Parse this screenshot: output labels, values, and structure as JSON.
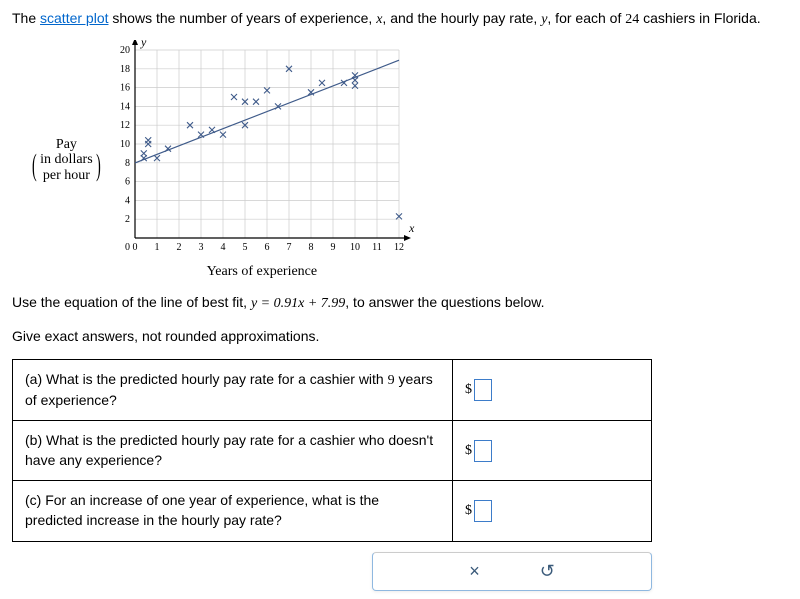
{
  "intro": {
    "pre": "The ",
    "link": "scatter plot",
    "mid": " shows the number of years of experience, ",
    "xvar": "x",
    "mid2": ", and the hourly pay rate, ",
    "yvar": "y",
    "mid3": ", for each of ",
    "n": "24",
    "post": " cashiers in Florida."
  },
  "chart": {
    "ylabel_line1": "Pay",
    "ylabel_line2a": "in dollars",
    "ylabel_line2b": "per hour",
    "xlabel": "Years of experience",
    "xaxis_var": "x",
    "yaxis_var": "y",
    "xlim": [
      0,
      12
    ],
    "ylim": [
      0,
      20
    ],
    "xtick_step": 1,
    "ytick_step": 2,
    "grid_color": "#cccccc",
    "axis_color": "#000000",
    "bg_color": "#ffffff",
    "tick_fontsize": 10,
    "marker": "x",
    "marker_color": "#3f5b8a",
    "marker_size": 6,
    "line_color": "#3f5b8a",
    "line_width": 1.2,
    "fit_line": {
      "x1": 0,
      "y1": 7.99,
      "x2": 12,
      "y2": 18.91
    },
    "points": [
      [
        0.4,
        8.5
      ],
      [
        0.4,
        9.0
      ],
      [
        0.6,
        10.0
      ],
      [
        0.6,
        10.4
      ],
      [
        1.0,
        8.5
      ],
      [
        1.5,
        9.5
      ],
      [
        2.5,
        12.0
      ],
      [
        3.0,
        11.0
      ],
      [
        3.5,
        11.5
      ],
      [
        4.0,
        11.0
      ],
      [
        4.5,
        15.0
      ],
      [
        5.0,
        12.0
      ],
      [
        5.0,
        14.5
      ],
      [
        5.5,
        14.5
      ],
      [
        6.0,
        15.7
      ],
      [
        6.5,
        14.0
      ],
      [
        7.0,
        18.0
      ],
      [
        8.0,
        15.5
      ],
      [
        8.5,
        16.5
      ],
      [
        9.5,
        16.5
      ],
      [
        10.0,
        16.2
      ],
      [
        10.0,
        16.8
      ],
      [
        10.0,
        17.3
      ],
      [
        12.0,
        2.3
      ]
    ]
  },
  "eq_para": {
    "pre": "Use the equation of the line of best fit, ",
    "eq": "y = 0.91x + 7.99",
    "post": ", to answer the questions below."
  },
  "instr": "Give exact answers, not rounded approximations.",
  "questions": {
    "a": {
      "pre": "(a) What is the predicted hourly pay rate for a cashier with ",
      "num": "9",
      "post": " years of experience?"
    },
    "b": "(b) What is the predicted hourly pay rate for a cashier who doesn't have any experience?",
    "c": "(c) For an increase of one year of experience, what is the predicted increase in the hourly pay rate?"
  },
  "currency": "$",
  "buttons": {
    "close": "×",
    "reset": "↺"
  }
}
